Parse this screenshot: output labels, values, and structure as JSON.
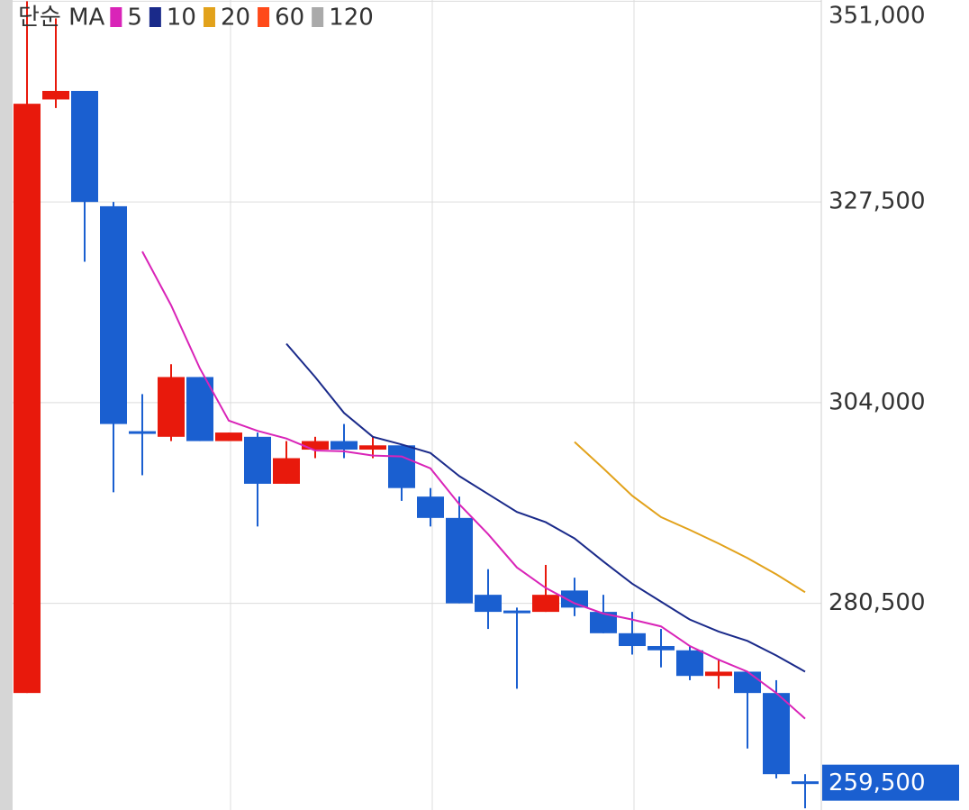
{
  "chart_data": {
    "type": "candlestick",
    "legend_title": "단순 MA",
    "categories": [
      null,
      null,
      null,
      null,
      null,
      null,
      null,
      null,
      null,
      null,
      null,
      null,
      null,
      null,
      null,
      null,
      null,
      null,
      null,
      null,
      null,
      null,
      null,
      null,
      null,
      null,
      null,
      null
    ],
    "candles": {
      "open": [
        270000,
        339500,
        340500,
        327000,
        300500,
        300000,
        307000,
        299500,
        300000,
        294500,
        298500,
        299500,
        298500,
        299000,
        293000,
        290500,
        281500,
        279500,
        279500,
        282000,
        279500,
        277000,
        275500,
        275000,
        272000,
        272500,
        270000,
        259500
      ],
      "high": [
        351000,
        349000,
        340500,
        327500,
        305000,
        308500,
        307000,
        300500,
        300500,
        299500,
        300000,
        301500,
        300000,
        299000,
        294000,
        293000,
        284500,
        280000,
        285000,
        283500,
        281500,
        279500,
        277500,
        275500,
        274000,
        272500,
        271500,
        260500
      ],
      "low": [
        270000,
        338500,
        320500,
        293500,
        295500,
        299500,
        299500,
        299500,
        289500,
        294500,
        297500,
        297500,
        297500,
        292500,
        289500,
        280500,
        277500,
        270500,
        279500,
        279000,
        277000,
        274500,
        273000,
        271500,
        270500,
        263500,
        260000,
        256500
      ],
      "close": [
        339000,
        340500,
        327500,
        301500,
        300500,
        307000,
        299500,
        300500,
        294500,
        297500,
        299500,
        298500,
        299000,
        294000,
        290500,
        280500,
        279500,
        279500,
        281500,
        280000,
        277000,
        275500,
        275000,
        272000,
        272500,
        270000,
        260500,
        259500
      ],
      "up_color": "#e8190c",
      "down_color": "#1a5fd0"
    },
    "series": [
      {
        "name": "5",
        "color": "#d924b8",
        "values": [
          null,
          null,
          null,
          null,
          321700,
          315400,
          308000,
          301900,
          300700,
          299800,
          298400,
          298300,
          297800,
          297700,
          296300,
          292100,
          288600,
          284700,
          282300,
          280500,
          279300,
          278600,
          277800,
          275500,
          273900,
          272500,
          270000,
          267000
        ]
      },
      {
        "name": "10",
        "color": "#1a2a8a",
        "values": [
          null,
          null,
          null,
          null,
          null,
          null,
          null,
          null,
          null,
          310900,
          307000,
          302800,
          300000,
          299100,
          298100,
          295400,
          293300,
          291200,
          290000,
          288100,
          285400,
          282800,
          280700,
          278600,
          277200,
          276100,
          274400,
          272500
        ]
      },
      {
        "name": "20",
        "color": "#e2a21b",
        "values": [
          null,
          null,
          null,
          null,
          null,
          null,
          null,
          null,
          null,
          null,
          null,
          null,
          null,
          null,
          null,
          null,
          null,
          null,
          null,
          299400,
          296300,
          293100,
          290600,
          289100,
          287500,
          285800,
          283900,
          281800
        ]
      },
      {
        "name": "60",
        "color": "#ff4a1a",
        "values": [
          null,
          null,
          null,
          null,
          null,
          null,
          null,
          null,
          null,
          null,
          null,
          null,
          null,
          null,
          null,
          null,
          null,
          null,
          null,
          null,
          null,
          null,
          null,
          null,
          null,
          null,
          null,
          null
        ]
      },
      {
        "name": "120",
        "color": "#aaaaaa",
        "values": [
          null,
          null,
          null,
          null,
          null,
          null,
          null,
          null,
          null,
          null,
          null,
          null,
          null,
          null,
          null,
          null,
          null,
          null,
          null,
          null,
          null,
          null,
          null,
          null,
          null,
          null,
          null,
          null
        ]
      }
    ],
    "ylim": [
      256300,
      351150
    ],
    "yticks": [
      {
        "value": 351000,
        "label": "351,000"
      },
      {
        "value": 327500,
        "label": "327,500"
      },
      {
        "value": 304000,
        "label": "304,000"
      },
      {
        "value": 280500,
        "label": "280,500"
      }
    ],
    "grid": true,
    "current_price": {
      "value": 259500,
      "label": "259,500",
      "color": "#1a5fd0"
    }
  }
}
